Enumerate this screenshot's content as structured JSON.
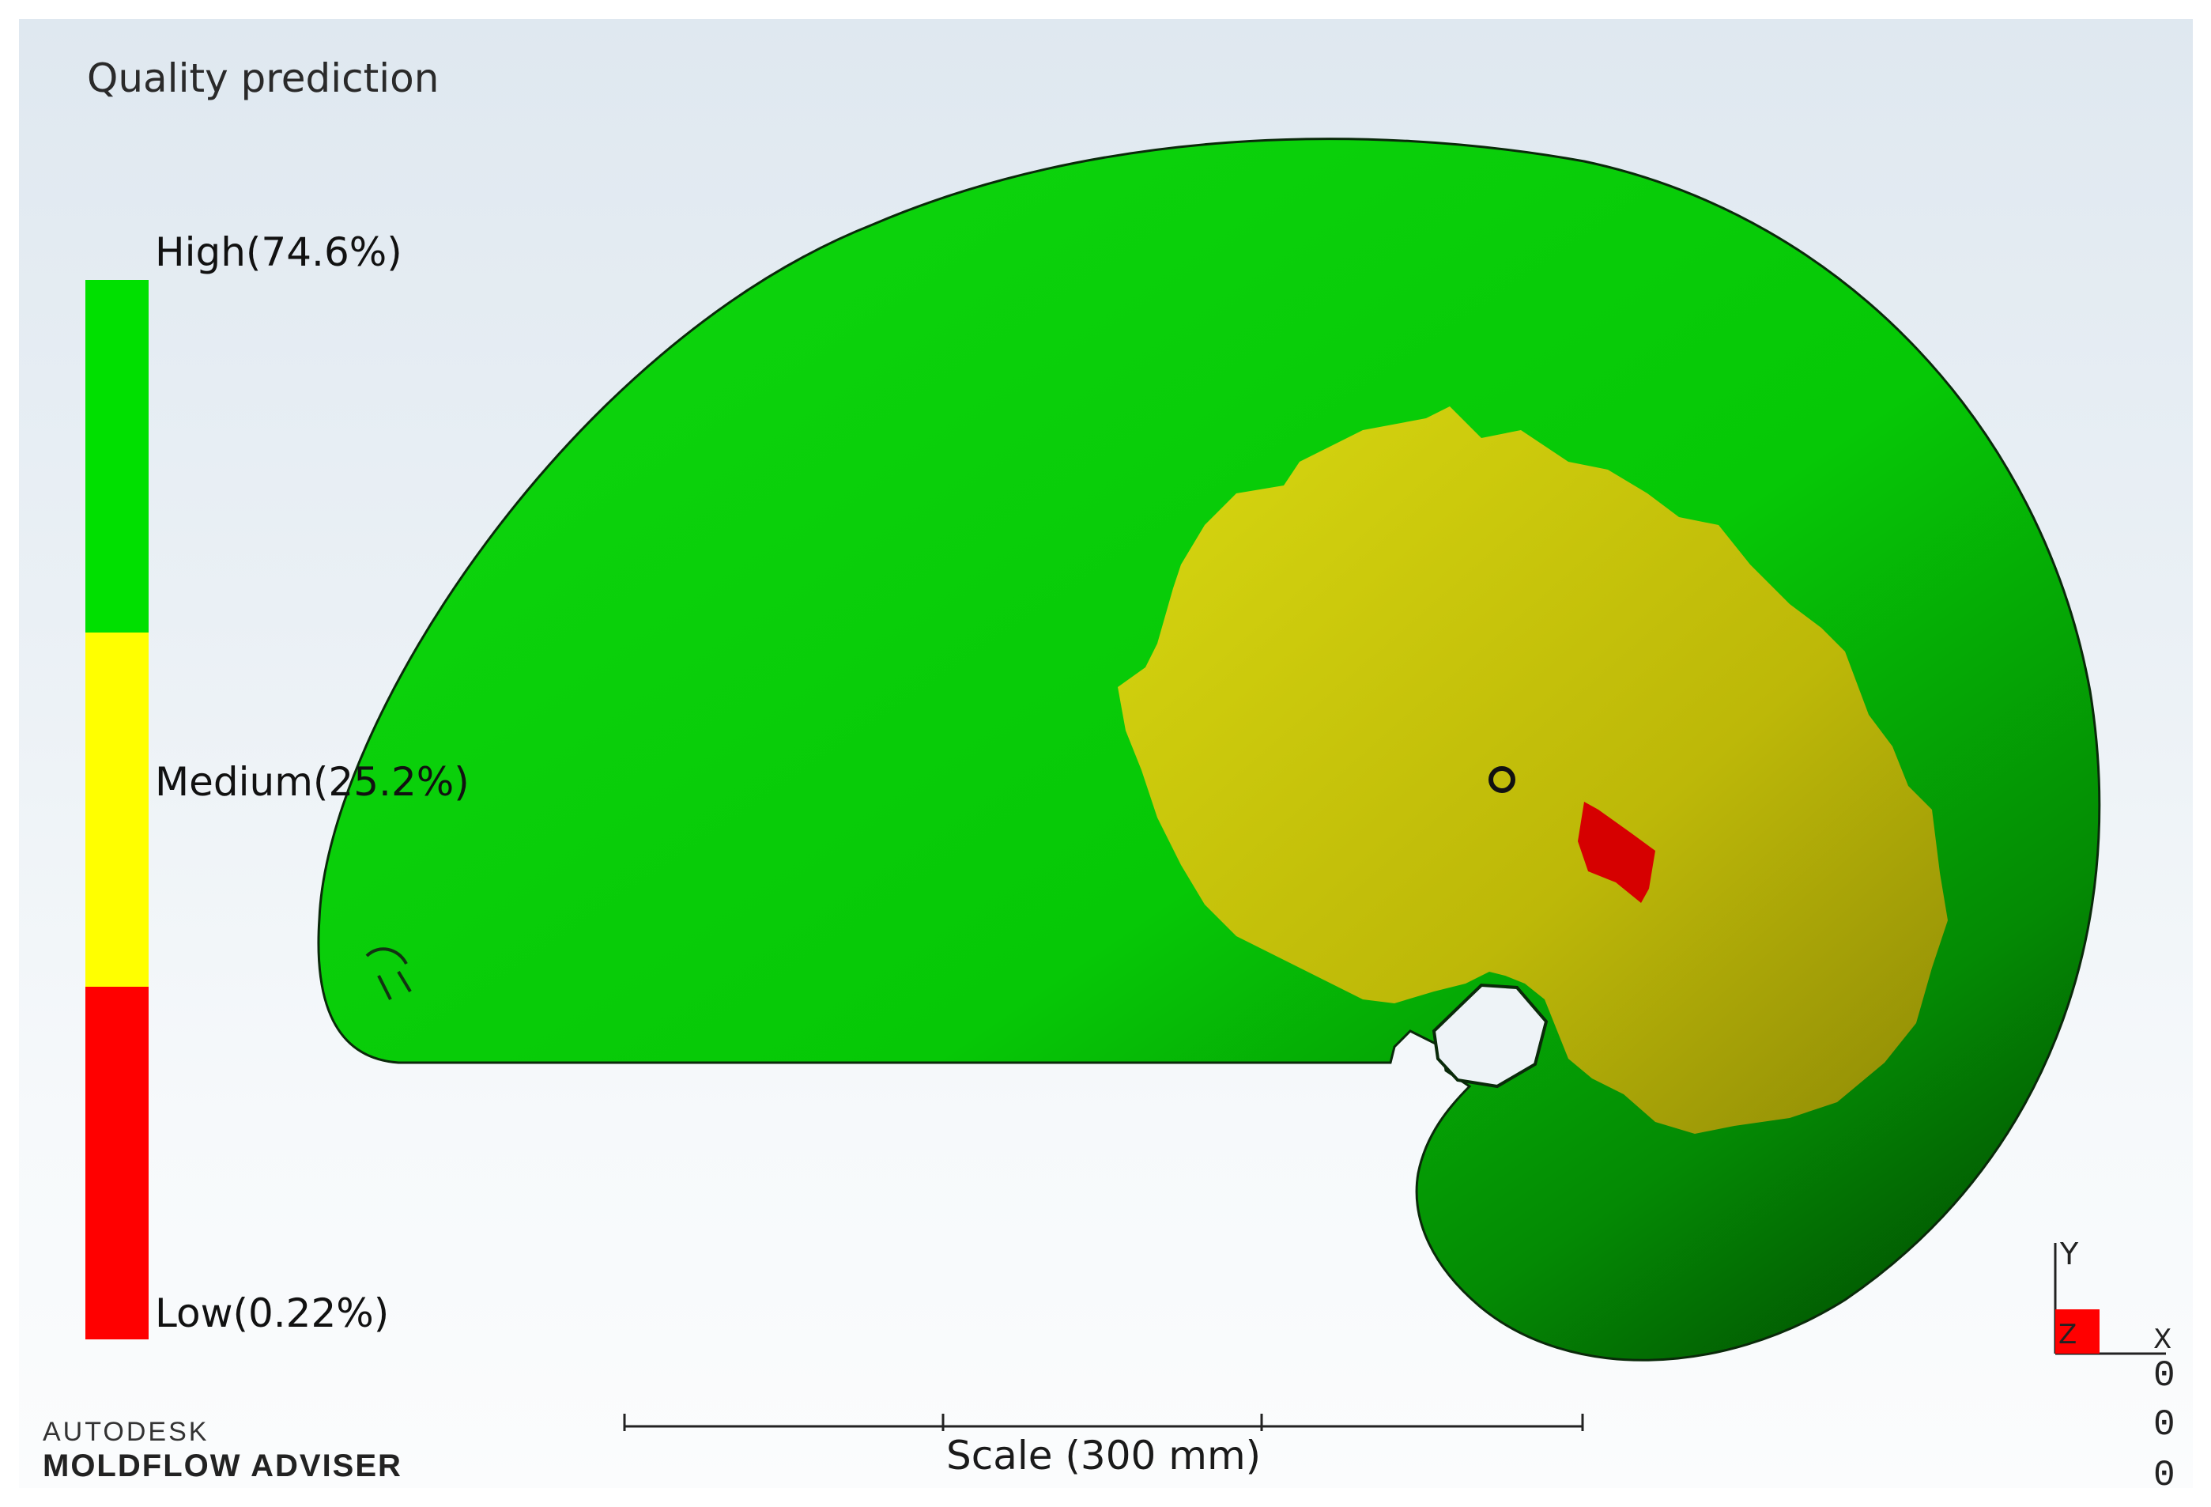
{
  "viewport": {
    "title": "Quality prediction",
    "legend": {
      "items": [
        {
          "label": "High(74.6%)",
          "color": "#00e000"
        },
        {
          "label": "Medium(25.2%)",
          "color": "#ffff00"
        },
        {
          "label": "Low(0.22%)",
          "color": "#ff0000"
        }
      ]
    },
    "scale": {
      "label": "Scale (300 mm)"
    },
    "triad": {
      "y": "Y",
      "z": "Z",
      "x": "X",
      "coords": [
        "0",
        "0",
        "0"
      ]
    },
    "brand": {
      "line1": "AUTODESK",
      "line2": "MOLDFLOW ADVISER"
    }
  }
}
